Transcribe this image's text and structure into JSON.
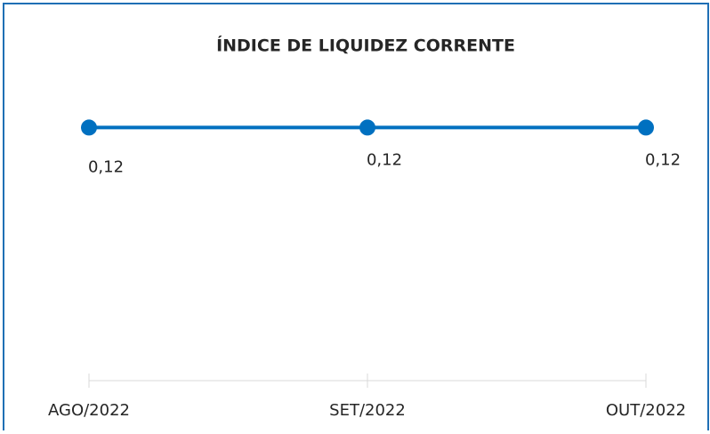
{
  "chart_data": {
    "type": "line",
    "title": "ÍNDICE DE LIQUIDEZ CORRENTE",
    "categories": [
      "AGO/2022",
      "SET/2022",
      "OUT/2022"
    ],
    "series": [
      {
        "color": "#0070c0",
        "values": [
          0.12,
          0.12,
          0.12
        ],
        "value_labels": [
          "0,12",
          "0,12",
          "0,12"
        ]
      }
    ],
    "ylim": [
      0,
      0.14
    ]
  }
}
